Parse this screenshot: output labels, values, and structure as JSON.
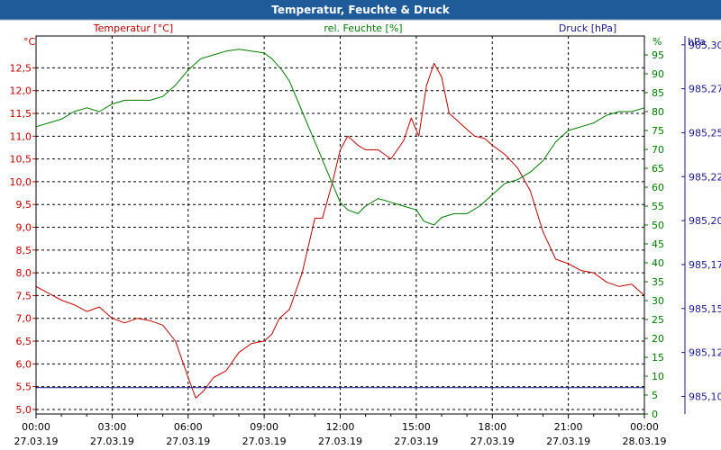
{
  "colors": {
    "title_bar": "#1f5a99",
    "title_text": "#ffffff",
    "temperature": "#c00000",
    "humidity": "#007a00",
    "pressure": "#1a1a8c",
    "grid": "#000000"
  },
  "chart_data": {
    "type": "line",
    "title": "Temperatur, Feuchte & Druck",
    "grid": "dashed",
    "x_ticks": [
      {
        "time": "00:00",
        "date": "27.03.19"
      },
      {
        "time": "03:00",
        "date": "27.03.19"
      },
      {
        "time": "06:00",
        "date": "27.03.19"
      },
      {
        "time": "09:00",
        "date": "27.03.19"
      },
      {
        "time": "12:00",
        "date": "27.03.19"
      },
      {
        "time": "15:00",
        "date": "27.03.19"
      },
      {
        "time": "18:00",
        "date": "27.03.19"
      },
      {
        "time": "21:00",
        "date": "27.03.19"
      },
      {
        "time": "00:00",
        "date": "28.03.19"
      }
    ],
    "x_range_hours": [
      0,
      24
    ],
    "axes": {
      "temperature": {
        "label": "Temperatur [°C]",
        "unit": "°C",
        "range": [
          4.9,
          13.2
        ],
        "ticks": [
          "5,0",
          "5,5",
          "6,0",
          "6,5",
          "7,0",
          "7,5",
          "8,0",
          "8,5",
          "9,0",
          "9,5",
          "10,0",
          "10,5",
          "11,0",
          "11,5",
          "12,0",
          "12,5"
        ],
        "tick_values": [
          5.0,
          5.5,
          6.0,
          6.5,
          7.0,
          7.5,
          8.0,
          8.5,
          9.0,
          9.5,
          10.0,
          10.5,
          11.0,
          11.5,
          12.0,
          12.5
        ]
      },
      "humidity": {
        "label": "rel. Feuchte [%]",
        "unit": "%",
        "range": [
          0,
          100
        ],
        "ticks": [
          "0",
          "5",
          "10",
          "15",
          "20",
          "25",
          "30",
          "35",
          "40",
          "45",
          "50",
          "55",
          "60",
          "65",
          "70",
          "75",
          "80",
          "85",
          "90",
          "95"
        ],
        "tick_values": [
          0,
          5,
          10,
          15,
          20,
          25,
          30,
          35,
          40,
          45,
          50,
          55,
          60,
          65,
          70,
          75,
          80,
          85,
          90,
          95
        ]
      },
      "pressure": {
        "label": "Druck [hPa]",
        "unit": "hPa",
        "range": [
          985.09,
          985.305
        ],
        "ticks": [
          "985,30",
          "985,27",
          "985,25",
          "985,22",
          "985,20",
          "985,17",
          "985,15",
          "985,12",
          "985,10"
        ],
        "tick_values": [
          985.3,
          985.275,
          985.25,
          985.225,
          985.2,
          985.175,
          985.15,
          985.125,
          985.1
        ]
      }
    },
    "series": [
      {
        "name": "Temperatur [°C]",
        "axis": "temperature",
        "points": [
          [
            0,
            7.7
          ],
          [
            0.5,
            7.55
          ],
          [
            1,
            7.4
          ],
          [
            1.5,
            7.3
          ],
          [
            2,
            7.15
          ],
          [
            2.5,
            7.25
          ],
          [
            3,
            7.0
          ],
          [
            3.5,
            6.9
          ],
          [
            4,
            7.0
          ],
          [
            4.5,
            6.95
          ],
          [
            5,
            6.85
          ],
          [
            5.5,
            6.5
          ],
          [
            6,
            5.7
          ],
          [
            6.3,
            5.25
          ],
          [
            6.6,
            5.4
          ],
          [
            7,
            5.7
          ],
          [
            7.5,
            5.85
          ],
          [
            8,
            6.25
          ],
          [
            8.5,
            6.45
          ],
          [
            9,
            6.5
          ],
          [
            9.3,
            6.65
          ],
          [
            9.6,
            7.0
          ],
          [
            10,
            7.2
          ],
          [
            10.5,
            8.0
          ],
          [
            11,
            9.2
          ],
          [
            11.3,
            9.2
          ],
          [
            11.7,
            10.0
          ],
          [
            12,
            10.7
          ],
          [
            12.3,
            11.0
          ],
          [
            12.7,
            10.8
          ],
          [
            13,
            10.7
          ],
          [
            13.5,
            10.7
          ],
          [
            14,
            10.5
          ],
          [
            14.5,
            10.9
          ],
          [
            14.8,
            11.4
          ],
          [
            15.1,
            11.0
          ],
          [
            15.4,
            12.1
          ],
          [
            15.7,
            12.6
          ],
          [
            16,
            12.3
          ],
          [
            16.3,
            11.5
          ],
          [
            16.7,
            11.3
          ],
          [
            17,
            11.15
          ],
          [
            17.3,
            11.0
          ],
          [
            17.7,
            10.95
          ],
          [
            18,
            10.8
          ],
          [
            18.5,
            10.6
          ],
          [
            19,
            10.3
          ],
          [
            19.5,
            9.8
          ],
          [
            20,
            8.9
          ],
          [
            20.5,
            8.3
          ],
          [
            21,
            8.2
          ],
          [
            21.5,
            8.05
          ],
          [
            22,
            8.0
          ],
          [
            22.5,
            7.8
          ],
          [
            23,
            7.7
          ],
          [
            23.5,
            7.75
          ],
          [
            24,
            7.5
          ]
        ]
      },
      {
        "name": "rel. Feuchte [%]",
        "axis": "humidity",
        "points": [
          [
            0,
            76
          ],
          [
            0.5,
            77
          ],
          [
            1,
            78
          ],
          [
            1.5,
            80
          ],
          [
            2,
            81
          ],
          [
            2.5,
            80
          ],
          [
            3,
            82
          ],
          [
            3.5,
            83
          ],
          [
            4,
            83
          ],
          [
            4.5,
            83
          ],
          [
            5,
            84
          ],
          [
            5.5,
            87
          ],
          [
            6,
            91
          ],
          [
            6.5,
            94
          ],
          [
            7,
            95
          ],
          [
            7.5,
            96
          ],
          [
            8,
            96.5
          ],
          [
            8.5,
            96
          ],
          [
            9,
            95.5
          ],
          [
            9.3,
            94
          ],
          [
            9.7,
            91
          ],
          [
            10,
            88
          ],
          [
            10.5,
            80
          ],
          [
            11,
            72
          ],
          [
            11.5,
            64
          ],
          [
            12,
            56
          ],
          [
            12.3,
            54
          ],
          [
            12.7,
            53
          ],
          [
            13,
            55
          ],
          [
            13.5,
            57
          ],
          [
            14,
            56
          ],
          [
            14.5,
            55
          ],
          [
            15,
            54
          ],
          [
            15.3,
            51
          ],
          [
            15.7,
            50
          ],
          [
            16,
            52
          ],
          [
            16.5,
            53
          ],
          [
            17,
            53
          ],
          [
            17.5,
            55
          ],
          [
            18,
            58
          ],
          [
            18.5,
            61
          ],
          [
            19,
            62
          ],
          [
            19.5,
            64
          ],
          [
            20,
            67
          ],
          [
            20.5,
            72
          ],
          [
            21,
            75
          ],
          [
            21.5,
            76
          ],
          [
            22,
            77
          ],
          [
            22.5,
            79
          ],
          [
            23,
            80
          ],
          [
            23.5,
            80
          ],
          [
            24,
            81
          ]
        ]
      },
      {
        "name": "Druck [hPa]",
        "axis": "pressure",
        "points": [
          [
            0,
            985.105
          ],
          [
            24,
            985.105
          ]
        ]
      }
    ]
  }
}
